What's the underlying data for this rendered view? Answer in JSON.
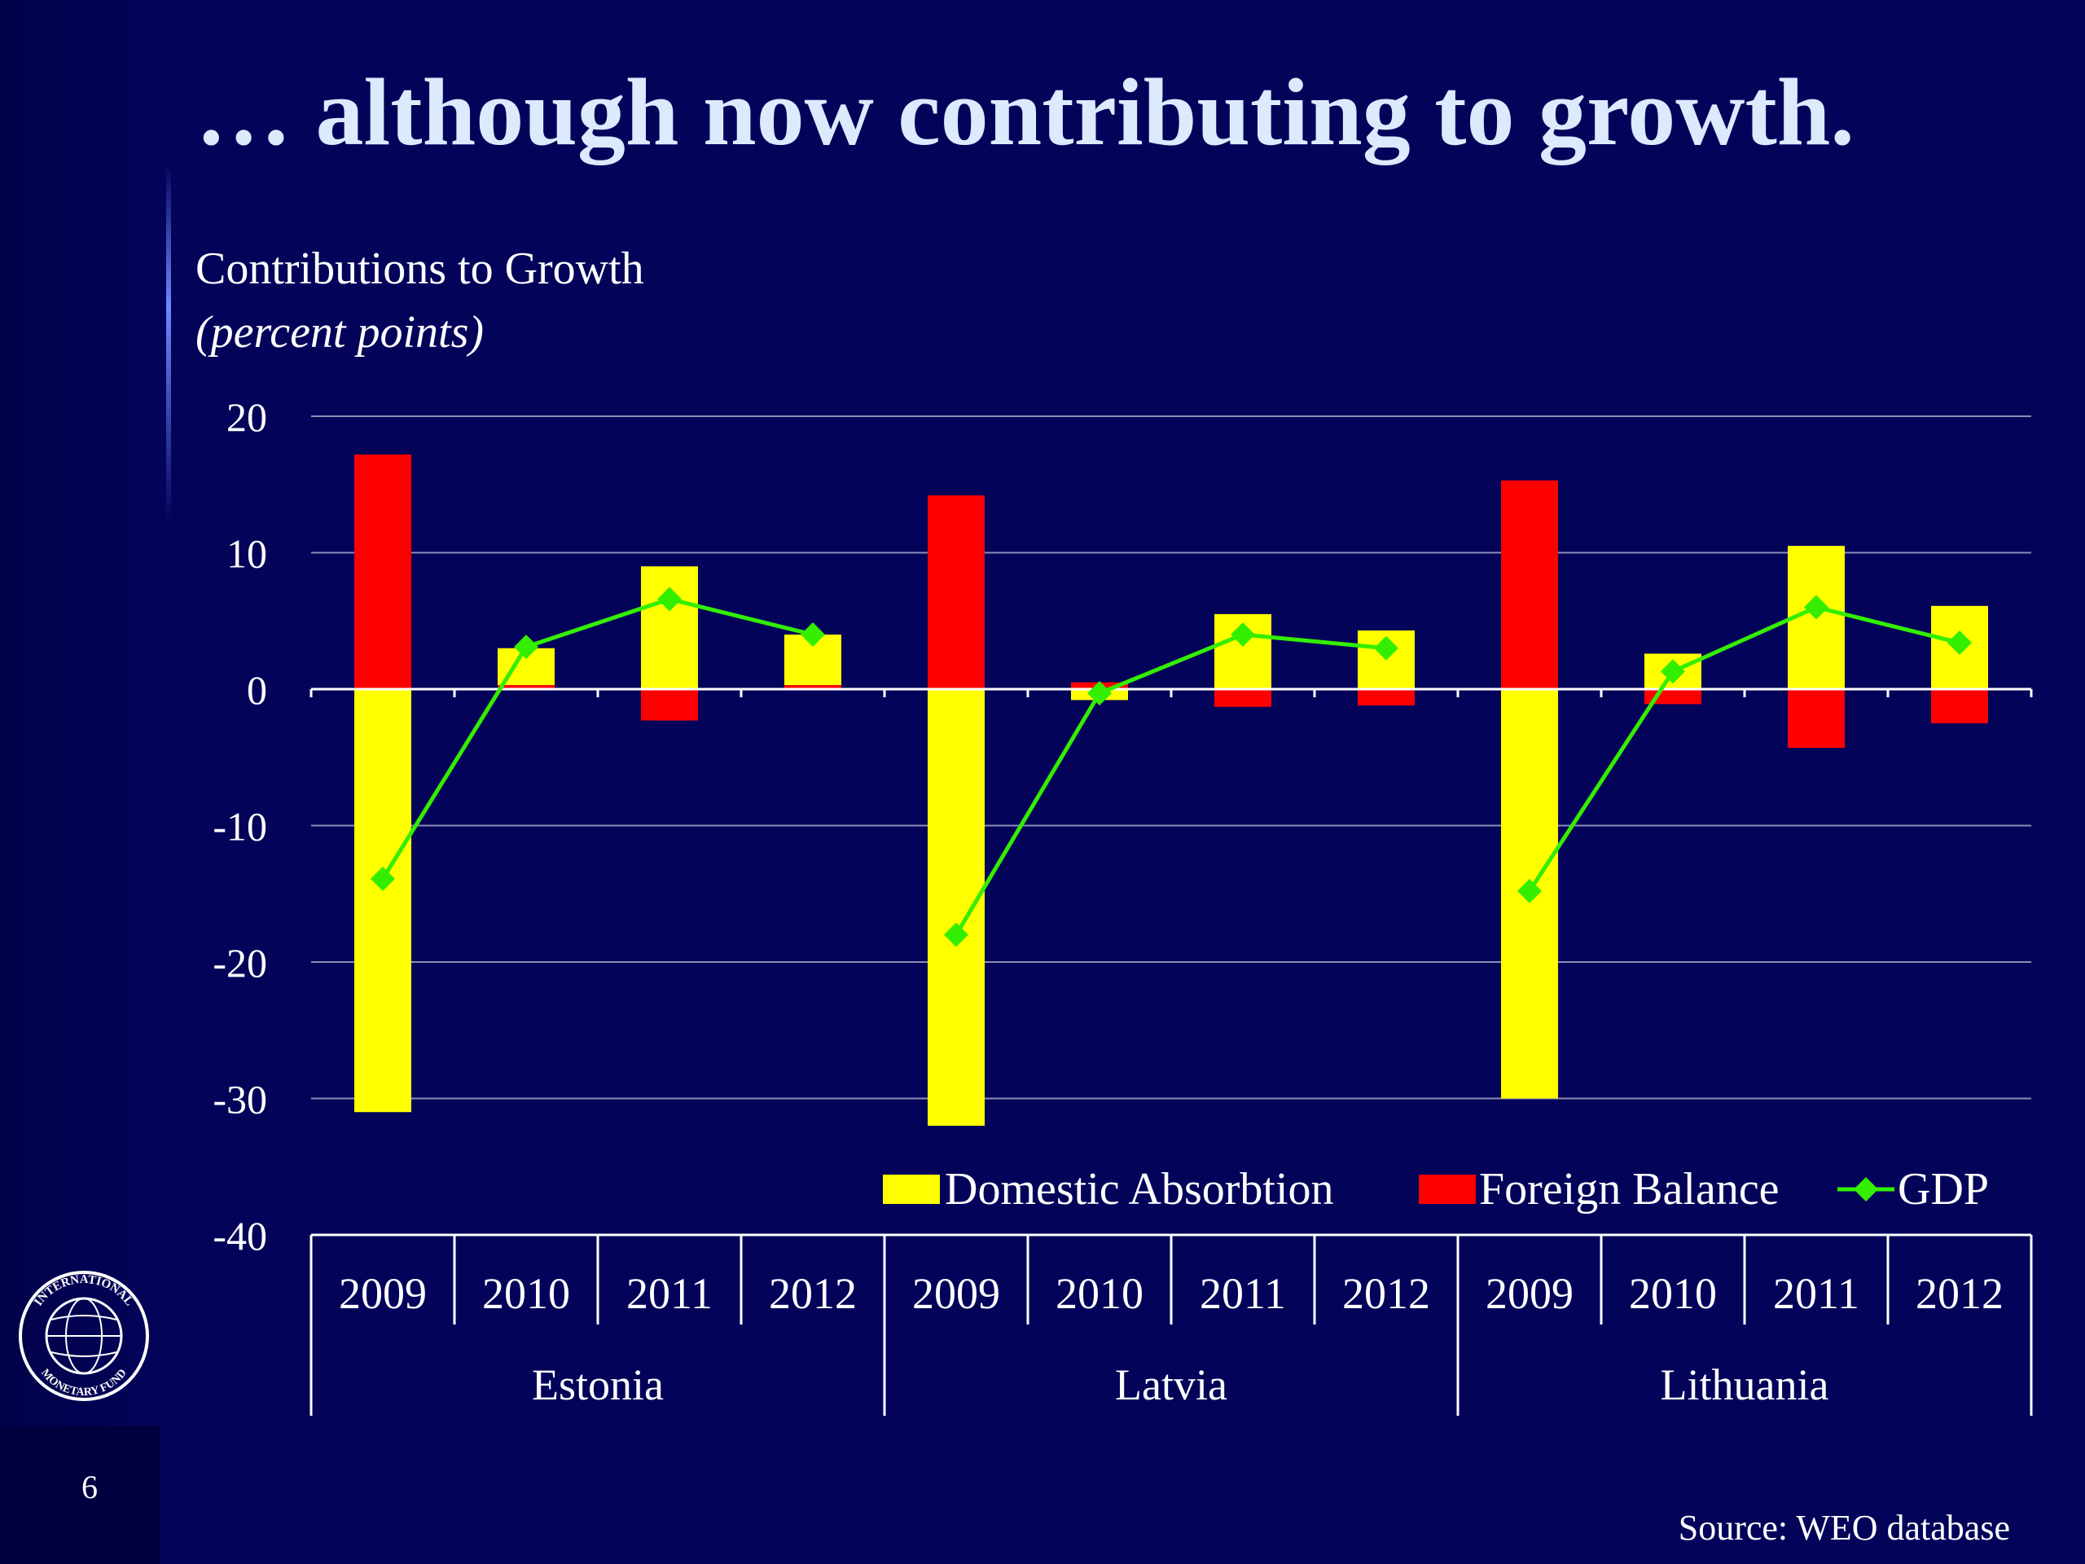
{
  "slide": {
    "title": "… although now contributing to growth.",
    "page_number": "6",
    "source": "Source: WEO database",
    "logo_text": "INTERNATIONAL MONETARY FUND"
  },
  "colors": {
    "background": "#03035a",
    "domestic": "#ffff00",
    "foreign": "#ff0000",
    "gdp": "#33ee00",
    "grid": "#8c8cb8"
  },
  "chart_data": {
    "type": "bar",
    "title": "Contributions to Growth",
    "unit_label": "(percent points)",
    "ylim": [
      -40,
      20
    ],
    "yticks": [
      20,
      10,
      0,
      -10,
      -20,
      -30,
      -40
    ],
    "grid": true,
    "legend_position": "bottom-right",
    "groups": [
      {
        "name": "Estonia",
        "categories": [
          "2009",
          "2010",
          "2011",
          "2012"
        ]
      },
      {
        "name": "Latvia",
        "categories": [
          "2009",
          "2010",
          "2011",
          "2012"
        ]
      },
      {
        "name": "Lithuania",
        "categories": [
          "2009",
          "2010",
          "2011",
          "2012"
        ]
      }
    ],
    "series": [
      {
        "name": "Domestic Absorbtion",
        "type": "bar",
        "values": [
          -31,
          3.0,
          9.0,
          4.0,
          -32,
          -0.8,
          5.5,
          4.3,
          -30,
          2.6,
          10.5,
          6.1
        ]
      },
      {
        "name": "Foreign Balance",
        "type": "bar",
        "values": [
          17.2,
          0.3,
          -2.3,
          0.3,
          14.2,
          0.5,
          -1.3,
          -1.2,
          15.3,
          -1.1,
          -4.3,
          -2.5
        ]
      },
      {
        "name": "GDP",
        "type": "line",
        "values": [
          -13.9,
          3.1,
          6.6,
          4.0,
          -18.0,
          -0.3,
          4.0,
          3.0,
          -14.8,
          1.3,
          6.0,
          3.4
        ]
      }
    ]
  }
}
